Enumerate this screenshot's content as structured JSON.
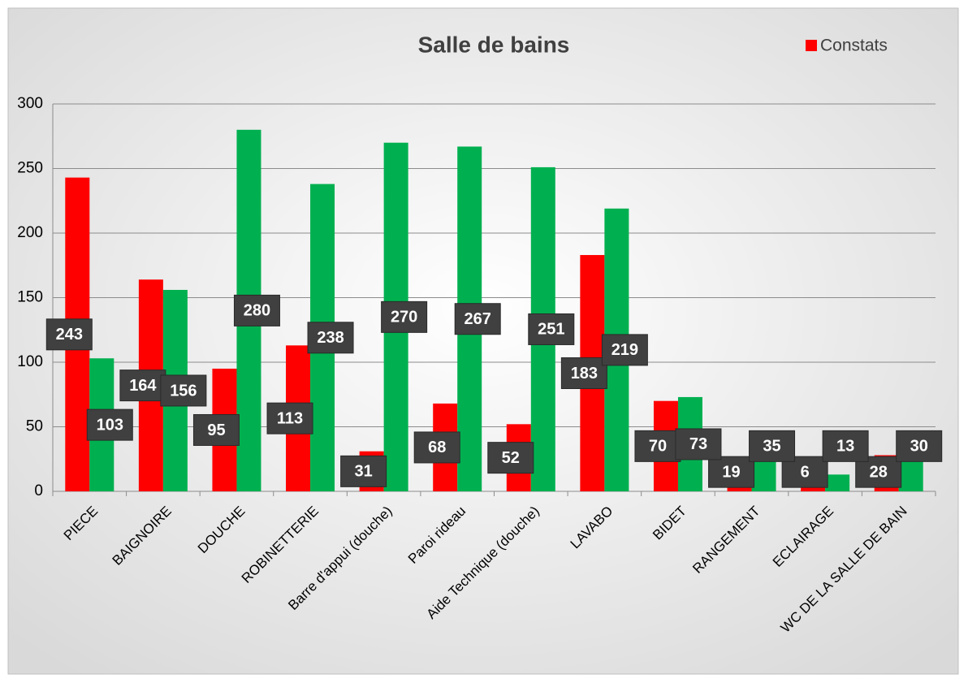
{
  "chart_data": {
    "type": "bar",
    "title": "Salle de bains",
    "categories": [
      "PIECE",
      "BAIGNOIRE",
      "DOUCHE",
      "ROBINETTERIE",
      "Barre d'appui (douche)",
      "Paroi rideau",
      "Aide Technique (douche)",
      "LAVABO",
      "BIDET",
      "RANGEMENT",
      "ECLAIRAGE",
      "WC DE LA SALLE DE BAIN"
    ],
    "series": [
      {
        "name": "Constats",
        "color": "#ff0000",
        "values": [
          243,
          164,
          95,
          113,
          31,
          68,
          52,
          183,
          70,
          19,
          6,
          28
        ]
      },
      {
        "color": "#00b050",
        "values": [
          103,
          156,
          280,
          238,
          270,
          267,
          251,
          219,
          73,
          35,
          13,
          30
        ]
      }
    ],
    "ylim": [
      0,
      300
    ],
    "yticks": [
      0,
      50,
      100,
      150,
      200,
      250,
      300
    ],
    "grid": true,
    "legend": "top-right"
  }
}
